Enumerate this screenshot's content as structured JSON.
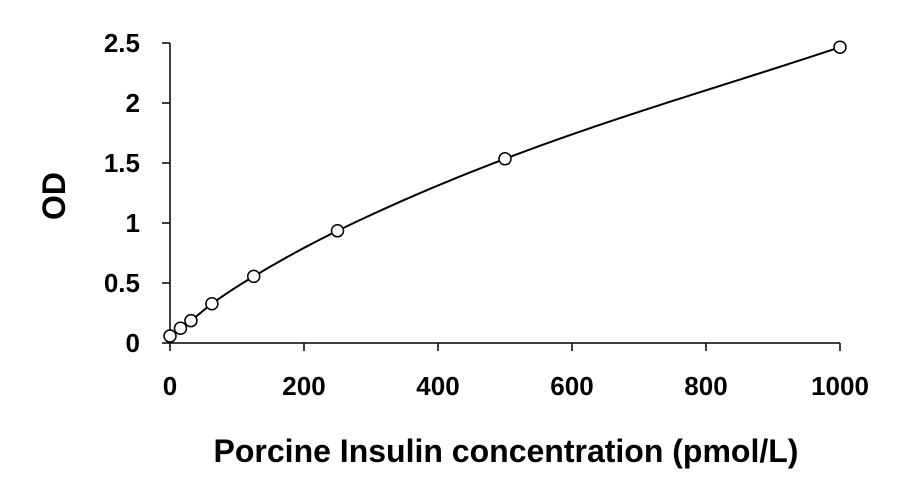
{
  "chart_data": {
    "type": "scatter",
    "title": "",
    "xlabel": "Porcine Insulin concentration (pmol/L)",
    "ylabel": "OD",
    "xlim": [
      0,
      1000
    ],
    "ylim": [
      0,
      2.5
    ],
    "x_ticks": [
      "0",
      "200",
      "400",
      "600",
      "800",
      "1000"
    ],
    "y_ticks": [
      "0",
      "0.5",
      "1",
      "1.5",
      "2",
      "2.5"
    ],
    "x_tick_values": [
      0,
      200,
      400,
      600,
      800,
      1000
    ],
    "y_tick_values": [
      0,
      0.5,
      1,
      1.5,
      2,
      2.5
    ],
    "grid": false,
    "legend": "none",
    "marker": "open-circle",
    "trendline": "smooth",
    "series": [
      {
        "x": [
          0,
          15.6,
          31.25,
          62.5,
          125,
          250,
          500,
          1000
        ],
        "y": [
          0.058,
          0.123,
          0.186,
          0.327,
          0.555,
          0.935,
          1.535,
          2.465
        ]
      }
    ],
    "colors": {
      "marker_stroke": "#000000",
      "marker_fill": "#ffffff",
      "line": "#000000",
      "axis": "#000000",
      "text": "#000000"
    }
  }
}
